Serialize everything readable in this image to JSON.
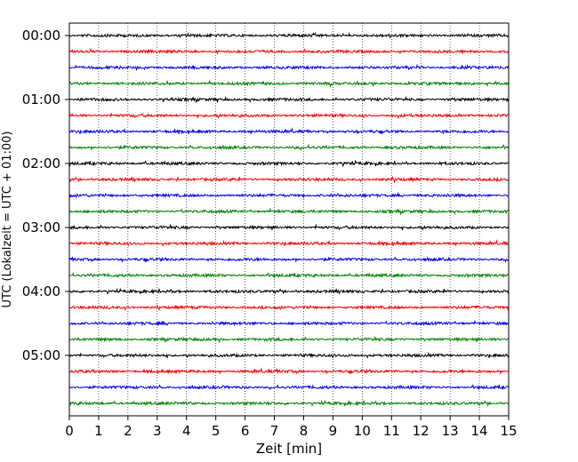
{
  "chart_data": {
    "type": "line",
    "title": "",
    "xlabel": "Zeit  [min]",
    "ylabel": "UTC (Lokalzeit = UTC + 01:00)",
    "xlim": [
      0,
      15
    ],
    "x_ticks": [
      "0",
      "1",
      "2",
      "3",
      "4",
      "5",
      "6",
      "7",
      "8",
      "9",
      "10",
      "11",
      "12",
      "13",
      "14",
      "15"
    ],
    "y_ticks": [
      "00:00",
      "01:00",
      "02:00",
      "03:00",
      "04:00",
      "05:00"
    ],
    "grid": "vertical dotted",
    "trace_interval_minutes": 15,
    "trace_count": 24,
    "trace_colors": [
      "#000000",
      "#ff0000",
      "#0000ff",
      "#008000"
    ],
    "legend": "none"
  }
}
